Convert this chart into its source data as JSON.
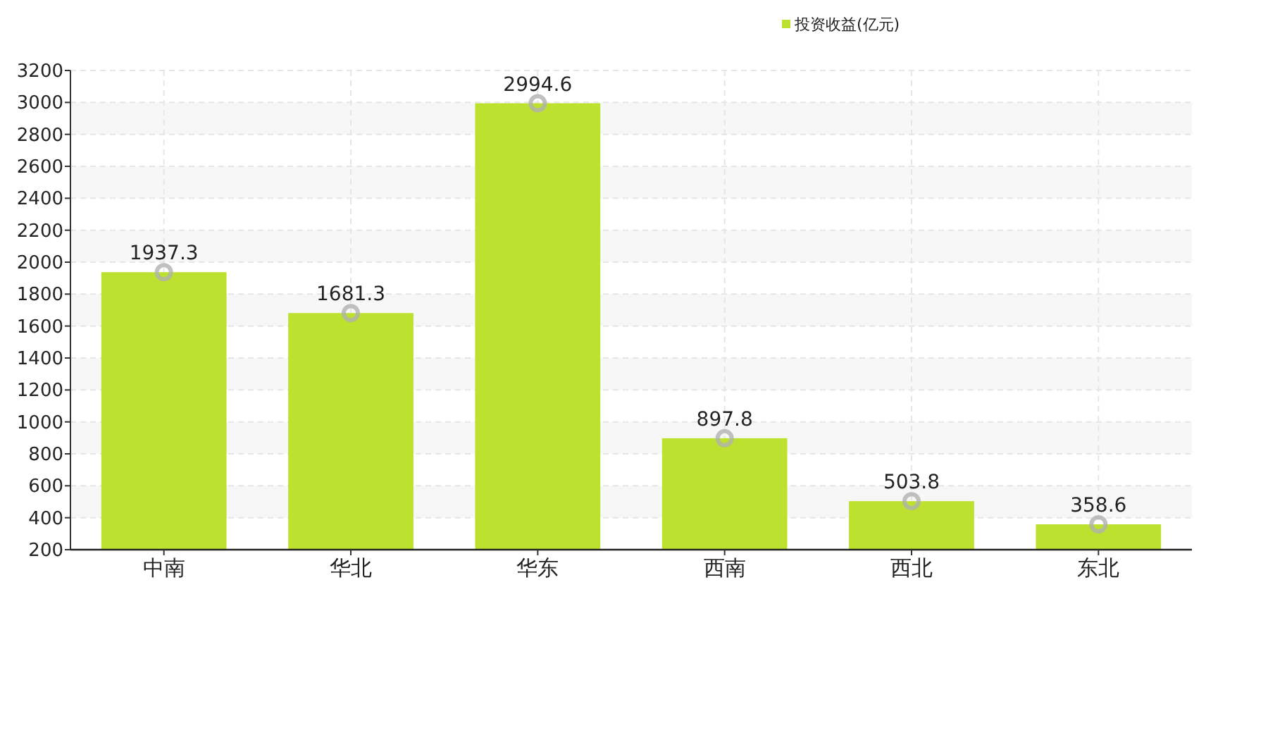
{
  "chart_data": {
    "type": "bar",
    "categories": [
      "中南",
      "华北",
      "华东",
      "西南",
      "西北",
      "东北"
    ],
    "series": [
      {
        "name": "投资收益(亿元)",
        "color": "#bce22f",
        "values": [
          1937.3,
          1681.3,
          2994.6,
          897.8,
          503.8,
          358.6
        ]
      }
    ],
    "ylim": [
      200,
      3200
    ],
    "yticks": [
      200,
      400,
      600,
      800,
      1000,
      1200,
      1400,
      1600,
      1800,
      2000,
      2200,
      2400,
      2600,
      2800,
      3000,
      3200
    ],
    "grid": true,
    "legend": "top right",
    "data_labels": true
  }
}
